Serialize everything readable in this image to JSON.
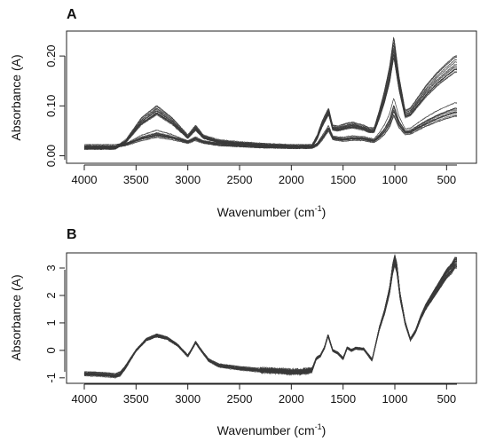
{
  "chart_data": [
    {
      "panel": "A",
      "type": "line",
      "xlabel": "Wavenumber (cm",
      "xlabel_sup": "-1",
      "xlabel_close": ")",
      "ylabel": "Absorbance (A)",
      "xlim": [
        4000,
        400
      ],
      "x_reversed": true,
      "ylim": [
        -0.015,
        0.25
      ],
      "x_ticks": [
        "4000",
        "3500",
        "3000",
        "2500",
        "2000",
        "1500",
        "1000",
        "500"
      ],
      "y_ticks": [
        "0.00",
        "0.10",
        "0.20"
      ],
      "x_tick_values": [
        4000,
        3500,
        3000,
        2500,
        2000,
        1500,
        1000,
        500
      ],
      "y_tick_values": [
        0,
        0.1,
        0.2
      ],
      "grid": false,
      "n_series": 40,
      "profile_low": {
        "x": [
          4000,
          3700,
          3600,
          3450,
          3300,
          3150,
          3000,
          2925,
          2850,
          2700,
          2500,
          2300,
          2000,
          1800,
          1750,
          1700,
          1640,
          1600,
          1550,
          1500,
          1450,
          1400,
          1300,
          1250,
          1200,
          1150,
          1100,
          1050,
          1010,
          960,
          900,
          850,
          800,
          700,
          600,
          500,
          420
        ],
        "y": [
          0.02,
          0.02,
          0.022,
          0.028,
          0.033,
          0.03,
          0.026,
          0.03,
          0.026,
          0.022,
          0.02,
          0.018,
          0.017,
          0.017,
          0.02,
          0.03,
          0.048,
          0.032,
          0.03,
          0.028,
          0.029,
          0.03,
          0.03,
          0.028,
          0.026,
          0.03,
          0.036,
          0.048,
          0.068,
          0.048,
          0.04,
          0.04,
          0.045,
          0.053,
          0.06,
          0.066,
          0.07
        ]
      },
      "profile_high": {
        "x": [
          4000,
          3700,
          3600,
          3450,
          3300,
          3150,
          3000,
          2925,
          2850,
          2700,
          2500,
          2300,
          2000,
          1800,
          1750,
          1700,
          1640,
          1600,
          1550,
          1500,
          1450,
          1400,
          1300,
          1250,
          1200,
          1150,
          1100,
          1050,
          1010,
          960,
          900,
          850,
          800,
          700,
          600,
          500,
          420
        ],
        "y": [
          0.015,
          0.015,
          0.03,
          0.075,
          0.1,
          0.075,
          0.04,
          0.06,
          0.04,
          0.03,
          0.026,
          0.023,
          0.02,
          0.02,
          0.04,
          0.07,
          0.095,
          0.06,
          0.058,
          0.062,
          0.065,
          0.066,
          0.06,
          0.055,
          0.055,
          0.09,
          0.13,
          0.18,
          0.24,
          0.16,
          0.09,
          0.095,
          0.11,
          0.14,
          0.165,
          0.185,
          0.2
        ]
      }
    },
    {
      "panel": "B",
      "type": "line",
      "xlabel": "Wavenumber (cm",
      "xlabel_sup": "-1",
      "xlabel_close": ")",
      "ylabel": "Absorbance (A)",
      "xlim": [
        4000,
        400
      ],
      "x_reversed": true,
      "ylim": [
        -1.2,
        3.55
      ],
      "x_ticks": [
        "4000",
        "3500",
        "3000",
        "2500",
        "2000",
        "1500",
        "1000",
        "500"
      ],
      "y_ticks": [
        "-1",
        "0",
        "1",
        "2",
        "3"
      ],
      "x_tick_values": [
        4000,
        3500,
        3000,
        2500,
        2000,
        1500,
        1000,
        500
      ],
      "y_tick_values": [
        -1,
        0,
        1,
        2,
        3
      ],
      "grid": false,
      "n_series": 40,
      "profile": {
        "x": [
          4000,
          3800,
          3700,
          3650,
          3600,
          3500,
          3400,
          3300,
          3200,
          3100,
          3000,
          2960,
          2925,
          2880,
          2850,
          2800,
          2700,
          2500,
          2300,
          2100,
          2000,
          1900,
          1800,
          1760,
          1720,
          1680,
          1645,
          1600,
          1550,
          1500,
          1460,
          1420,
          1380,
          1300,
          1250,
          1220,
          1180,
          1150,
          1100,
          1050,
          1020,
          1000,
          980,
          950,
          900,
          850,
          800,
          750,
          700,
          600,
          500,
          450,
          420
        ],
        "y": [
          -0.85,
          -0.88,
          -0.92,
          -0.85,
          -0.6,
          0.0,
          0.4,
          0.55,
          0.45,
          0.2,
          -0.2,
          0.05,
          0.3,
          0.05,
          -0.1,
          -0.35,
          -0.55,
          -0.65,
          -0.72,
          -0.75,
          -0.78,
          -0.78,
          -0.72,
          -0.3,
          -0.2,
          0.1,
          0.55,
          0.0,
          -0.1,
          -0.3,
          0.1,
          0.0,
          0.08,
          0.05,
          -0.2,
          -0.35,
          0.3,
          0.8,
          1.4,
          2.2,
          3.0,
          3.3,
          3.0,
          2.0,
          1.0,
          0.4,
          0.7,
          1.2,
          1.6,
          2.2,
          2.8,
          3.0,
          3.2
        ]
      }
    }
  ]
}
